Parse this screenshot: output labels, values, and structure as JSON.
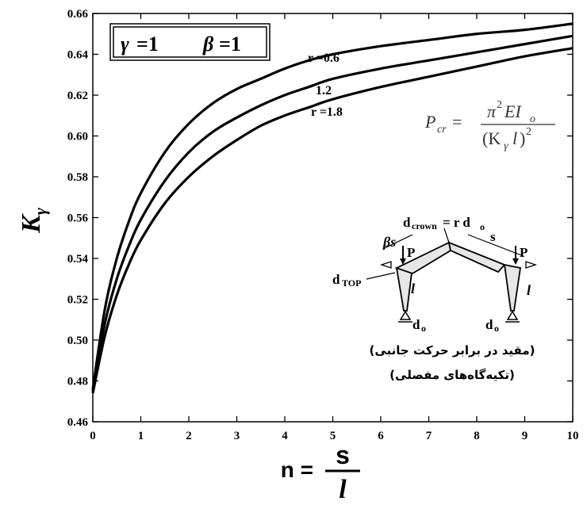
{
  "chart_data": {
    "type": "line",
    "xlabel_prefix": "n =",
    "xlabel_num": "s",
    "xlabel_den": "l",
    "ylabel": "K",
    "ylabel_sub": "γ",
    "xlim": [
      0,
      10
    ],
    "ylim": [
      0.46,
      0.66
    ],
    "x_ticks": [
      "0",
      "1",
      "2",
      "3",
      "4",
      "5",
      "6",
      "7",
      "8",
      "9",
      "10"
    ],
    "y_ticks": [
      "0.46",
      "0.48",
      "0.50",
      "0.52",
      "0.54",
      "0.56",
      "0.58",
      "0.60",
      "0.62",
      "0.64",
      "0.66"
    ],
    "grid": false,
    "series": [
      {
        "name": "r =0.6",
        "x": [
          0,
          0.25,
          0.5,
          0.75,
          1,
          1.5,
          2,
          2.5,
          3,
          3.5,
          4,
          4.5,
          5,
          6,
          7,
          8,
          9,
          10
        ],
        "y": [
          0.476,
          0.515,
          0.54,
          0.558,
          0.572,
          0.592,
          0.606,
          0.616,
          0.623,
          0.628,
          0.633,
          0.637,
          0.64,
          0.644,
          0.647,
          0.65,
          0.652,
          0.655
        ]
      },
      {
        "name": "1.2",
        "x": [
          0,
          0.25,
          0.5,
          0.75,
          1,
          1.5,
          2,
          2.5,
          3,
          3.5,
          4,
          4.5,
          5,
          6,
          7,
          8,
          9,
          10
        ],
        "y": [
          0.475,
          0.508,
          0.53,
          0.546,
          0.559,
          0.578,
          0.592,
          0.602,
          0.609,
          0.615,
          0.62,
          0.624,
          0.628,
          0.633,
          0.637,
          0.641,
          0.645,
          0.649
        ]
      },
      {
        "name": "r =1.8",
        "x": [
          0,
          0.25,
          0.5,
          0.75,
          1,
          1.5,
          2,
          2.5,
          3,
          3.5,
          4,
          4.5,
          5,
          6,
          7,
          8,
          9,
          10
        ],
        "y": [
          0.474,
          0.502,
          0.522,
          0.537,
          0.549,
          0.567,
          0.58,
          0.59,
          0.598,
          0.605,
          0.61,
          0.614,
          0.618,
          0.624,
          0.629,
          0.634,
          0.639,
          0.643
        ]
      }
    ],
    "params_box": {
      "gamma_symbol": "γ",
      "gamma_value": "=1",
      "beta_symbol": "β",
      "beta_value": "=1"
    },
    "formula": {
      "lhs": "P",
      "lhs_sub": "cr",
      "eq": "=",
      "numerator_pi": "π",
      "numerator_pow": "2",
      "numerator_rest": "EI",
      "numerator_sub": "o",
      "den_open": "(K",
      "den_sub": "γ",
      "den_l": "l",
      "den_close": ")",
      "den_pow": "2"
    },
    "diagram": {
      "crown_label": "d",
      "crown_sub": "crown",
      "crown_eq": "= r d",
      "crown_eq_sub": "o",
      "beta_s": "βs",
      "s_label": "s",
      "p_left": "P",
      "p_right": "P",
      "dtop": "d",
      "dtop_sub": "TOP",
      "l_left": "l",
      "l_right": "l",
      "d0_left": "d",
      "d0_left_sub": "o",
      "d0_right": "d",
      "d0_right_sub": "o"
    },
    "notes": [
      "(مقید در برابر حرکت جانبی)",
      "(تکیه‌گاه‌های مفصلی)"
    ]
  }
}
